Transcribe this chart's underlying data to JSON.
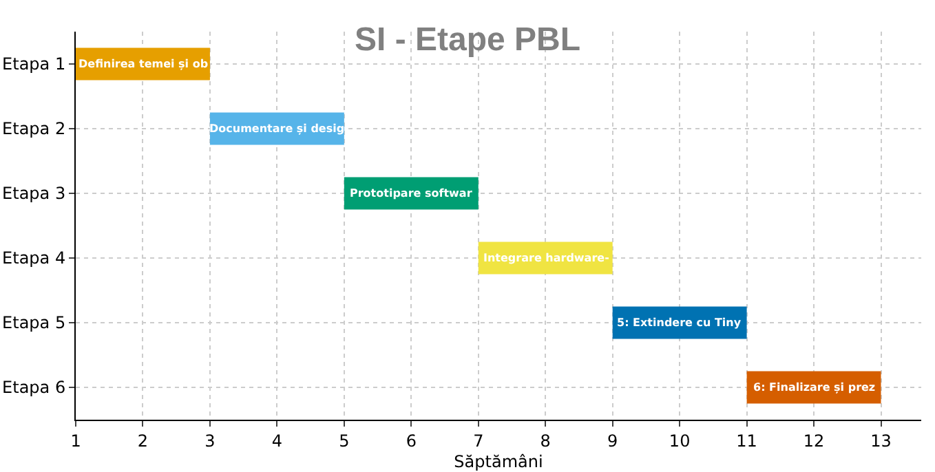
{
  "chart_data": {
    "type": "bar",
    "orientation": "horizontal",
    "title": "SI - Etape PBL",
    "xlabel": "Săptămâni",
    "categories": [
      "Etapa 1",
      "Etapa 2",
      "Etapa 3",
      "Etapa 4",
      "Etapa 5",
      "Etapa 6"
    ],
    "base": [
      1,
      3,
      5,
      7,
      9,
      11
    ],
    "values": [
      2,
      2,
      2,
      2,
      2,
      2
    ],
    "colors": [
      "#e69f00",
      "#56b4e9",
      "#009e73",
      "#f0e442",
      "#0072b2",
      "#d55e00"
    ],
    "annotations": [
      "Definirea temei și ob",
      "Documentare și desig",
      "Prototipare softwar",
      "Integrare hardware-",
      "5: Extindere cu Tiny",
      "6: Finalizare și prez"
    ],
    "xlim": [
      1,
      13.6
    ],
    "xticks": [
      1,
      2,
      3,
      4,
      5,
      6,
      7,
      8,
      9,
      10,
      11,
      12,
      13
    ],
    "grid": true,
    "legend": false
  }
}
